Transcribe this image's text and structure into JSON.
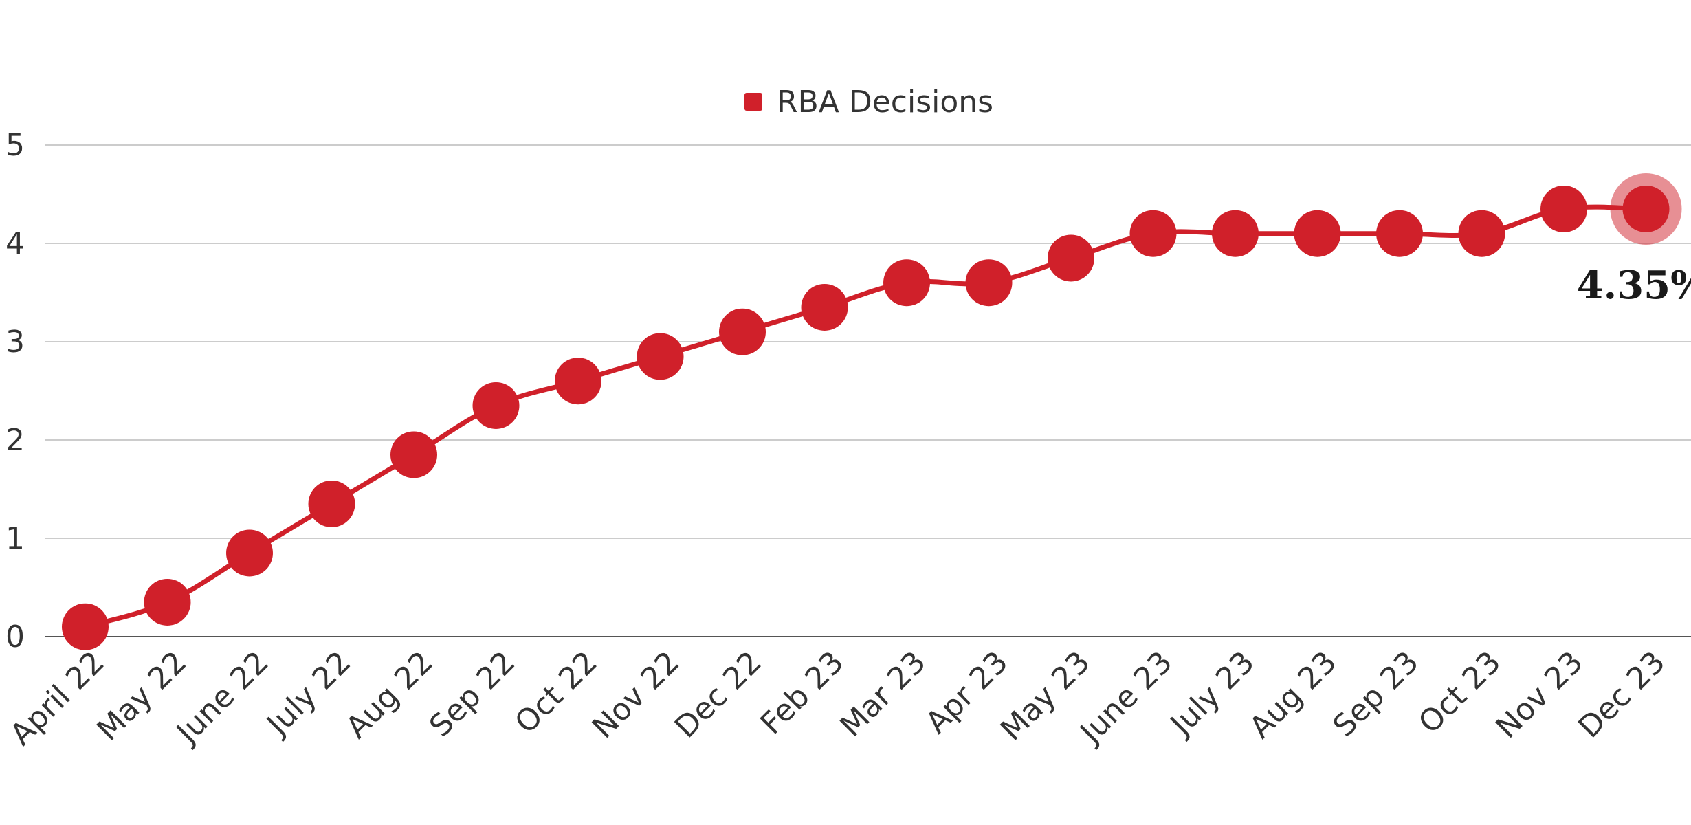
{
  "chart_data": {
    "type": "line",
    "title": "",
    "xlabel": "",
    "ylabel": "",
    "categories": [
      "April 22",
      "May 22",
      "June 22",
      "July 22",
      "Aug 22",
      "Sep 22",
      "Oct 22",
      "Nov 22",
      "Dec 22",
      "Feb 23",
      "Mar 23",
      "Apr 23",
      "May 23",
      "June 23",
      "July 23",
      "Aug 23",
      "Sep 23",
      "Oct 23",
      "Nov 23",
      "Dec 23"
    ],
    "series": [
      {
        "name": "RBA Decisions",
        "values": [
          0.1,
          0.35,
          0.85,
          1.35,
          1.85,
          2.35,
          2.6,
          2.85,
          3.1,
          3.35,
          3.6,
          3.6,
          3.85,
          4.1,
          4.1,
          4.1,
          4.1,
          4.1,
          4.35,
          4.35
        ]
      }
    ],
    "ylim": [
      0,
      5
    ],
    "yticks": [
      0,
      1,
      2,
      3,
      4,
      5
    ],
    "grid": true,
    "legend": "top-center",
    "color": "#d0202a",
    "highlight": {
      "index": 19,
      "label": "4.35%"
    }
  }
}
